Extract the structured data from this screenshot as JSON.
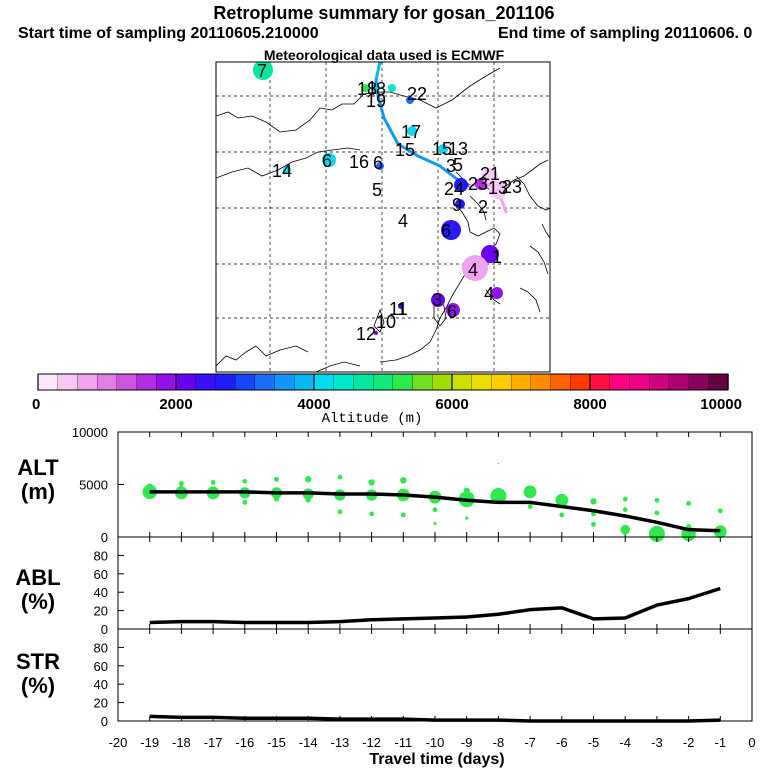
{
  "header": {
    "title": "Retroplume summary for gosan_201106",
    "start": "Start time of sampling 20110605.210000",
    "end": "End time of sampling 20110606.    0",
    "met": "Meteorological data used is ECMWF"
  },
  "colorbar": {
    "xlabel": "Altitude (m)",
    "ticks": [
      "0",
      "2000",
      "4000",
      "6000",
      "8000",
      "10000"
    ],
    "range": [
      0,
      10000
    ],
    "colors": [
      "#fde8fb",
      "#f8c8f4",
      "#f0a3ee",
      "#e27ee4",
      "#cc55e0",
      "#b22ee0",
      "#9410e8",
      "#6a00f0",
      "#3a10f2",
      "#1e1efa",
      "#1846fa",
      "#1e6ef8",
      "#1496f6",
      "#06b8f2",
      "#00dcf2",
      "#00e8cc",
      "#00e8a0",
      "#10e878",
      "#2ee84e",
      "#6ee020",
      "#a2dc00",
      "#cce000",
      "#eedd00",
      "#ffcc00",
      "#ffae00",
      "#ff8c00",
      "#ff6200",
      "#ff3800",
      "#ff1040",
      "#ff0080",
      "#ee0088",
      "#d00080",
      "#b00070",
      "#8a0060",
      "#640040"
    ]
  },
  "map": {
    "labels": [
      "7",
      "14",
      "6",
      "16",
      "6",
      "5",
      "4",
      "19",
      "17",
      "15",
      "3",
      "2",
      "24",
      "23",
      "21",
      "9",
      "4",
      "1",
      "4",
      "3",
      "1",
      "11",
      "10",
      "12",
      "6",
      "6",
      "18",
      "1",
      "15",
      "13",
      "13",
      "8",
      "5",
      "23",
      "22"
    ],
    "label_colors": [
      "#00e8a0",
      "#00dcf2",
      "#06b8f2",
      "#1e6ef8",
      "#00dcf2",
      "#1846fa",
      "#6a00f0",
      "#00dcf2",
      "#00dcf2",
      "#00dcf2",
      "#3a10f2",
      "#f0a3ee",
      "#1e1efa",
      "#b22ee0",
      "#f8c8f4",
      "#1e1efa",
      "#3a10f2",
      "#f0a3ee",
      "#9410e8",
      "#9410e8",
      "#3a10f2",
      "#1e1efa",
      "#6a00f0",
      "#6a00f0",
      "#3a10f2",
      "#1e1efa",
      "#10e878",
      "#00dcf2",
      "#00dcf2",
      "#00dcf2",
      "#f0a3ee",
      "#1846fa",
      "#6a00f0",
      "#9410e8",
      "#1e6ef8"
    ]
  },
  "panels": [
    {
      "label": "ALT\n(m)"
    },
    {
      "label": "ABL\n(%)"
    },
    {
      "label": "STR\n(%)"
    }
  ],
  "chart_data": [
    {
      "type": "line",
      "title": "ALT (m)",
      "ylabel": "ALT (m)",
      "xlabel": "Travel time (days)",
      "xlim": [
        -20,
        0
      ],
      "ylim": [
        0,
        10000
      ],
      "yticks": [
        0,
        5000,
        10000
      ],
      "x": [
        -19,
        -18,
        -17,
        -16,
        -15,
        -14,
        -13,
        -12,
        -11,
        -10,
        -9,
        -8,
        -7,
        -6,
        -5,
        -4,
        -3,
        -2,
        -1
      ],
      "values": [
        4300,
        4300,
        4300,
        4300,
        4200,
        4200,
        4100,
        4100,
        4000,
        3800,
        3500,
        3300,
        3300,
        2900,
        2500,
        2000,
        1400,
        700,
        600
      ],
      "scatter": {
        "color": "#2ee84e",
        "points": [
          {
            "x": -19,
            "y": 4300,
            "s": 9
          },
          {
            "x": -19,
            "y": 4800,
            "s": 4
          },
          {
            "x": -19,
            "y": 3900,
            "s": 3
          },
          {
            "x": -18,
            "y": 4200,
            "s": 8
          },
          {
            "x": -18,
            "y": 5100,
            "s": 3
          },
          {
            "x": -18,
            "y": 4700,
            "s": 3
          },
          {
            "x": -17,
            "y": 4200,
            "s": 8
          },
          {
            "x": -17,
            "y": 5200,
            "s": 3
          },
          {
            "x": -17,
            "y": 3800,
            "s": 3
          },
          {
            "x": -16,
            "y": 4200,
            "s": 7
          },
          {
            "x": -16,
            "y": 5300,
            "s": 3
          },
          {
            "x": -16,
            "y": 3300,
            "s": 3
          },
          {
            "x": -15,
            "y": 4200,
            "s": 7
          },
          {
            "x": -15,
            "y": 5500,
            "s": 3
          },
          {
            "x": -15,
            "y": 3600,
            "s": 3
          },
          {
            "x": -14,
            "y": 4100,
            "s": 7
          },
          {
            "x": -14,
            "y": 5500,
            "s": 4
          },
          {
            "x": -14,
            "y": 3500,
            "s": 3
          },
          {
            "x": -13,
            "y": 4000,
            "s": 7
          },
          {
            "x": -13,
            "y": 5700,
            "s": 3
          },
          {
            "x": -13,
            "y": 2400,
            "s": 3
          },
          {
            "x": -12,
            "y": 4000,
            "s": 7
          },
          {
            "x": -12,
            "y": 5200,
            "s": 4
          },
          {
            "x": -12,
            "y": 2200,
            "s": 3
          },
          {
            "x": -11,
            "y": 4000,
            "s": 8
          },
          {
            "x": -11,
            "y": 5400,
            "s": 4
          },
          {
            "x": -11,
            "y": 2100,
            "s": 3
          },
          {
            "x": -10,
            "y": 3800,
            "s": 8
          },
          {
            "x": -10,
            "y": 2600,
            "s": 3
          },
          {
            "x": -10,
            "y": 1300,
            "s": 2
          },
          {
            "x": -9,
            "y": 3600,
            "s": 10
          },
          {
            "x": -9,
            "y": 4400,
            "s": 4
          },
          {
            "x": -9,
            "y": 1800,
            "s": 2
          },
          {
            "x": -8,
            "y": 3900,
            "s": 10
          },
          {
            "x": -8,
            "y": 7000,
            "s": 1
          },
          {
            "x": -7,
            "y": 4300,
            "s": 8
          },
          {
            "x": -7,
            "y": 2900,
            "s": 3
          },
          {
            "x": -6,
            "y": 3500,
            "s": 8
          },
          {
            "x": -6,
            "y": 2100,
            "s": 3
          },
          {
            "x": -5,
            "y": 3400,
            "s": 4
          },
          {
            "x": -5,
            "y": 2200,
            "s": 3
          },
          {
            "x": -5,
            "y": 1200,
            "s": 3
          },
          {
            "x": -4,
            "y": 3600,
            "s": 3
          },
          {
            "x": -4,
            "y": 2600,
            "s": 3
          },
          {
            "x": -4,
            "y": 700,
            "s": 6
          },
          {
            "x": -3,
            "y": 3500,
            "s": 3
          },
          {
            "x": -3,
            "y": 2300,
            "s": 3
          },
          {
            "x": -3,
            "y": 300,
            "s": 10
          },
          {
            "x": -2,
            "y": 3200,
            "s": 3
          },
          {
            "x": -2,
            "y": 1000,
            "s": 3
          },
          {
            "x": -2,
            "y": 300,
            "s": 9
          },
          {
            "x": -1,
            "y": 2500,
            "s": 3
          },
          {
            "x": -1,
            "y": 500,
            "s": 8
          }
        ]
      }
    },
    {
      "type": "line",
      "title": "ABL (%)",
      "ylabel": "ABL (%)",
      "xlim": [
        -20,
        0
      ],
      "ylim": [
        0,
        100
      ],
      "yticks": [
        0,
        20,
        40,
        60,
        80
      ],
      "x": [
        -19,
        -18,
        -17,
        -16,
        -15,
        -14,
        -13,
        -12,
        -11,
        -10,
        -9,
        -8,
        -7,
        -6,
        -5,
        -4,
        -3,
        -2,
        -1
      ],
      "values": [
        7,
        8,
        8,
        7,
        7,
        7,
        8,
        10,
        11,
        12,
        13,
        16,
        21,
        23,
        11,
        12,
        26,
        33,
        44
      ]
    },
    {
      "type": "line",
      "title": "STR (%)",
      "ylabel": "STR (%)",
      "xlabel": "Travel time (days)",
      "xlim": [
        -20,
        0
      ],
      "ylim": [
        0,
        100
      ],
      "yticks": [
        0,
        20,
        40,
        60,
        80
      ],
      "xticks": [
        -20,
        -19,
        -18,
        -17,
        -16,
        -15,
        -14,
        -13,
        -12,
        -11,
        -10,
        -9,
        -8,
        -7,
        -6,
        -5,
        -4,
        -3,
        -2,
        -1,
        0
      ],
      "x": [
        -19,
        -18,
        -17,
        -16,
        -15,
        -14,
        -13,
        -12,
        -11,
        -10,
        -9,
        -8,
        -7,
        -6,
        -5,
        -4,
        -3,
        -2,
        -1
      ],
      "values": [
        5,
        4,
        4,
        3,
        3,
        3,
        2,
        2,
        2,
        1,
        1,
        1,
        0,
        0,
        0,
        0,
        0,
        0,
        1
      ]
    }
  ]
}
